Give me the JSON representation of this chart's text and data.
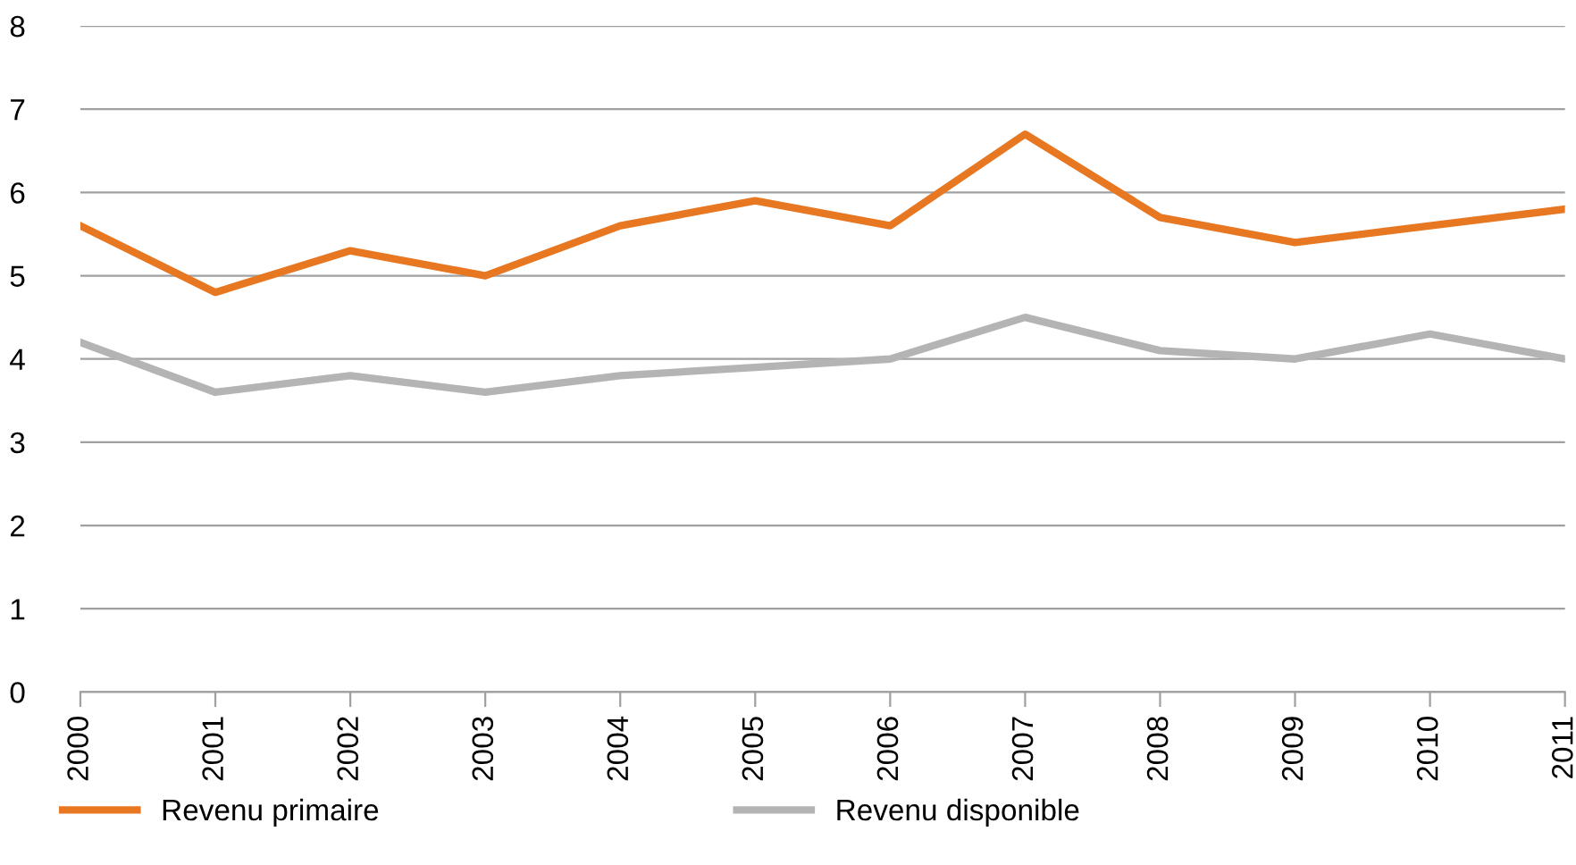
{
  "chart_data": {
    "type": "line",
    "categories": [
      "2000",
      "2001",
      "2002",
      "2003",
      "2004",
      "2005",
      "2006",
      "2007",
      "2008",
      "2009",
      "2010",
      "2011"
    ],
    "series": [
      {
        "name": "Revenu primaire",
        "color": "#e87722",
        "values": [
          5.6,
          4.8,
          5.3,
          5.0,
          5.6,
          5.9,
          5.6,
          6.7,
          5.7,
          5.4,
          5.6,
          5.8
        ]
      },
      {
        "name": "Revenu disponible",
        "color": "#b4b4b4",
        "values": [
          4.2,
          3.6,
          3.8,
          3.6,
          3.8,
          3.9,
          4.0,
          4.5,
          4.1,
          4.0,
          4.3,
          4.0
        ]
      }
    ],
    "ylim": [
      0,
      8
    ],
    "yticks": [
      0,
      1,
      2,
      3,
      4,
      5,
      6,
      7,
      8
    ],
    "grid": "y",
    "legend": "bottom",
    "marker": "none",
    "line_style": "solid"
  }
}
